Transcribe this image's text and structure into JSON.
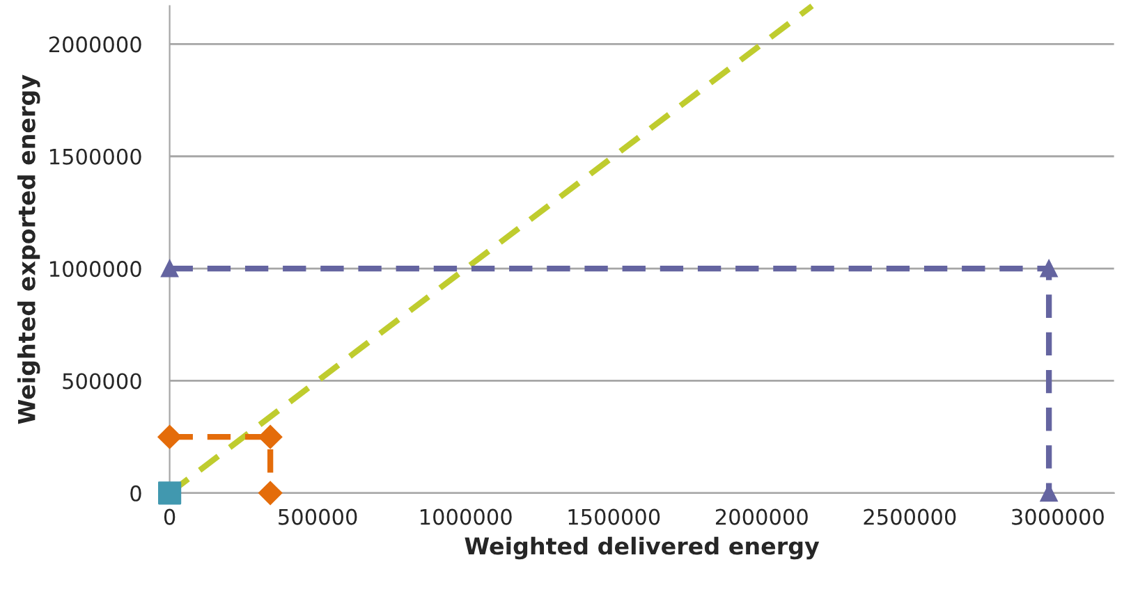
{
  "chart_data": {
    "type": "line",
    "xlabel": "Weighted delivered energy",
    "ylabel": "Weighted exported energy",
    "xlim": [
      0,
      3190000
    ],
    "ylim": [
      0,
      2170000
    ],
    "xticks": [
      0,
      500000,
      1000000,
      1500000,
      2000000,
      2500000,
      3000000
    ],
    "yticks": [
      0,
      500000,
      1000000,
      1500000,
      2000000
    ],
    "grid": "y",
    "line_style": "dashed",
    "series": [
      {
        "color": "#bfcc2e",
        "marker": "none",
        "x": [
          0,
          2170000
        ],
        "values": [
          0,
          2170000
        ]
      },
      {
        "color": "#e46c0a",
        "marker": "diamond",
        "x": [
          0,
          340000,
          340000
        ],
        "values": [
          250000,
          250000,
          0
        ]
      },
      {
        "color": "#6464a0",
        "marker": "triangle",
        "x": [
          0,
          2970000,
          2970000
        ],
        "values": [
          1000000,
          1000000,
          0
        ]
      },
      {
        "type": "scatter",
        "color": "#4198af",
        "marker": "square",
        "x": [
          0
        ],
        "values": [
          0
        ]
      }
    ]
  }
}
